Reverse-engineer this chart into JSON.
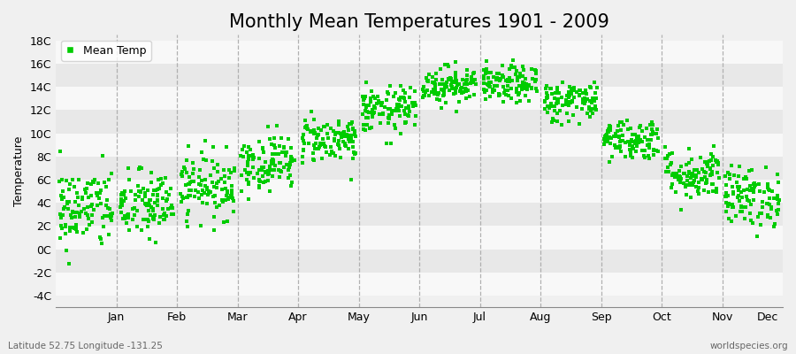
{
  "title": "Monthly Mean Temperatures 1901 - 2009",
  "ylabel": "Temperature",
  "ytick_labels": [
    "-4C",
    "-2C",
    "0C",
    "2C",
    "4C",
    "6C",
    "8C",
    "10C",
    "12C",
    "14C",
    "16C",
    "18C"
  ],
  "ytick_values": [
    -4,
    -2,
    0,
    2,
    4,
    6,
    8,
    10,
    12,
    14,
    16,
    18
  ],
  "ylim": [
    -5.0,
    18.5
  ],
  "months": [
    "Jan",
    "Feb",
    "Mar",
    "Apr",
    "May",
    "Jun",
    "Jul",
    "Aug",
    "Sep",
    "Oct",
    "Nov",
    "Dec"
  ],
  "marker_color": "#00cc00",
  "band_color_light": "#f0f0f0",
  "band_color_dark": "#e0e0e0",
  "bg_color": "#f0f0f0",
  "plot_bg_color": "#f0f0f0",
  "grid_color": "#999999",
  "title_fontsize": 15,
  "axis_label_fontsize": 9,
  "tick_fontsize": 9,
  "subtitle_left": "Latitude 52.75 Longitude -131.25",
  "subtitle_right": "worldspecies.org",
  "legend_label": "Mean Temp",
  "seed": 42,
  "n_years": 109,
  "monthly_means": [
    3.5,
    3.8,
    5.5,
    7.5,
    9.5,
    12.0,
    14.2,
    14.2,
    12.8,
    9.5,
    6.5,
    4.5
  ],
  "monthly_stds": [
    1.8,
    1.5,
    1.4,
    1.2,
    1.0,
    1.0,
    0.8,
    0.8,
    0.9,
    0.9,
    1.1,
    1.3
  ]
}
